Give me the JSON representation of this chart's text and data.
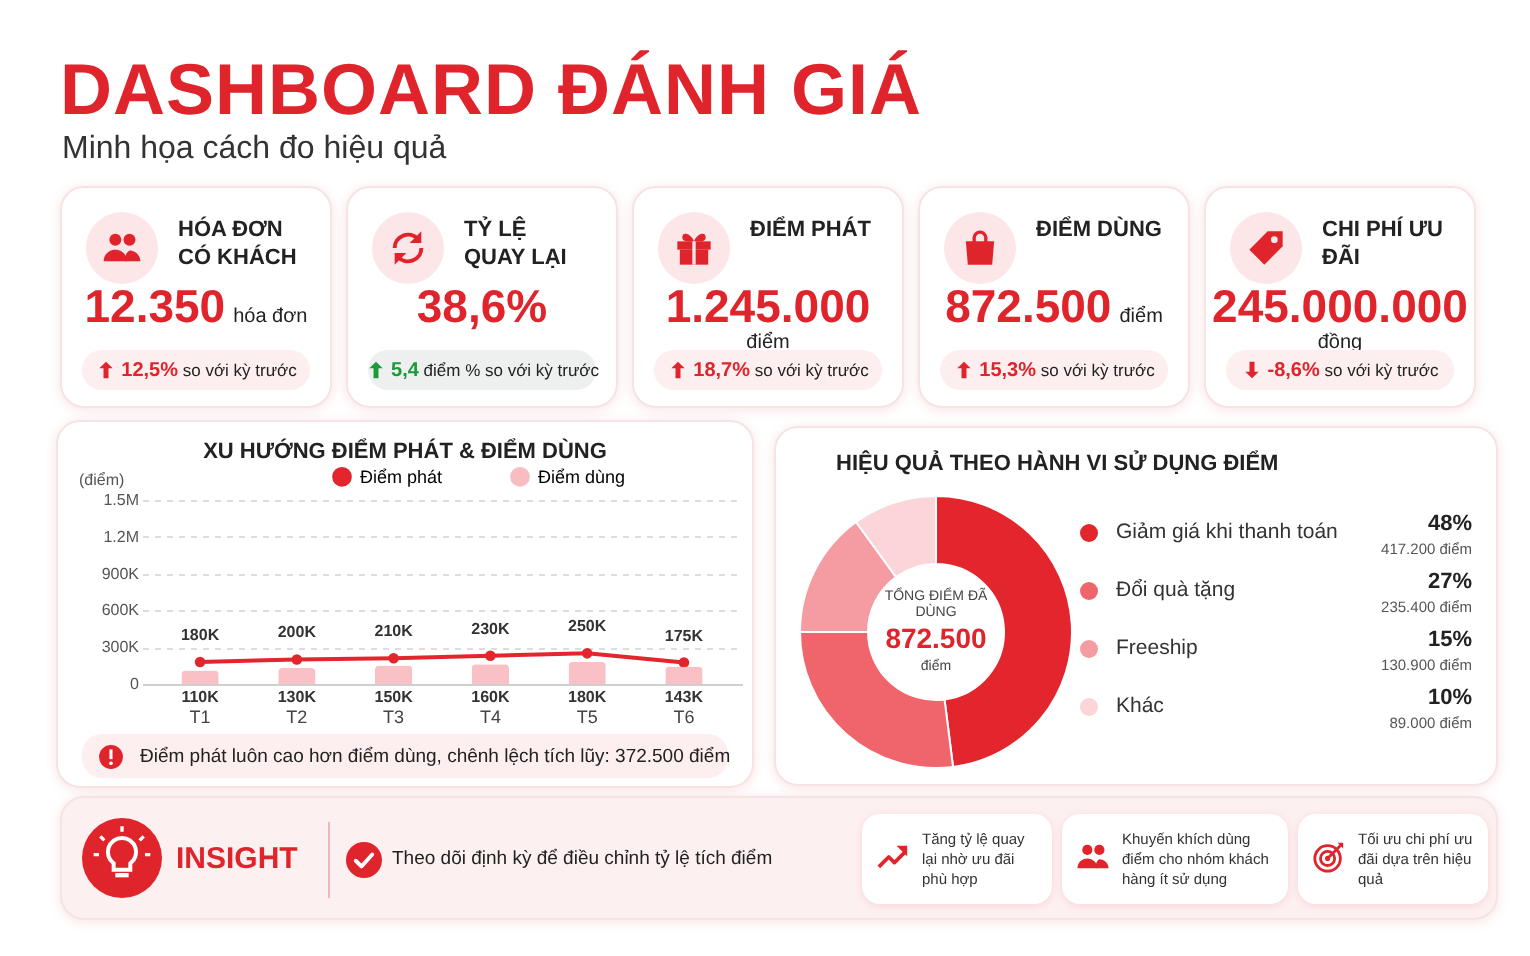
{
  "chart_data": [
    {
      "type": "other",
      "title": "DASHBOARD ĐÁNH GIÁ",
      "subtitle": "Minh họa cách đo hiệu quả"
    },
    {
      "type": "other",
      "title": "HÓA ĐƠN CÓ KHÁCH",
      "annotations": [
        "12.350",
        "hóa đơn",
        "12,5% so với kỳ trước"
      ]
    },
    {
      "type": "other",
      "title": "TỶ LỆ QUAY LẠI",
      "annotations": [
        "38,6%",
        "5,4 điểm % so với kỳ trước"
      ]
    },
    {
      "type": "other",
      "title": "ĐIỂM PHÁT",
      "annotations": [
        "1.245.000",
        "điểm",
        "18,7% so với kỳ trước"
      ]
    },
    {
      "type": "other",
      "title": "ĐIỂM DÙNG",
      "annotations": [
        "872.500",
        "điểm",
        "15,3% so với kỳ trước"
      ]
    },
    {
      "type": "other",
      "title": "CHI PHÍ ƯU ĐÃI",
      "annotations": [
        "245.000.000",
        "đồng",
        "-8,6% so với kỳ trước"
      ]
    },
    {
      "type": "bar",
      "title": "XU HƯỚNG ĐIỂM PHÁT & ĐIỂM DÙNG",
      "ylabel": "(điểm)",
      "categories": [
        "T1",
        "T2",
        "T3",
        "T4",
        "T5",
        "T6"
      ],
      "series": [
        {
          "name": "Điểm phát",
          "type": "line",
          "color": "#e3262e",
          "values": [
            180000,
            200000,
            210000,
            230000,
            250000,
            175000
          ],
          "value_labels": [
            "180K",
            "200K",
            "210K",
            "230K",
            "250K",
            "175K"
          ]
        },
        {
          "name": "Điểm dùng",
          "type": "bar",
          "color": "#f9bcc1",
          "values": [
            110000,
            130000,
            150000,
            160000,
            180000,
            143000
          ],
          "value_labels": [
            "110K",
            "130K",
            "150K",
            "160K",
            "180K",
            "143K"
          ]
        }
      ],
      "ylim": [
        0,
        1500000
      ],
      "yticks": [
        0,
        {
          "value": 300000,
          "label": "300K"
        },
        {
          "value": 600000,
          "label": "600K"
        },
        {
          "value": 900000,
          "label": "900K"
        },
        {
          "value": 1200000,
          "label": "1.2M"
        },
        {
          "value": 1500000,
          "label": "1.5M"
        }
      ],
      "grid": "y",
      "legend": "top",
      "marker": "circle",
      "annotations": [
        "Điểm phát luôn cao hơn điểm dùng, chênh lệch tích lũy: 372.500 điểm"
      ]
    },
    {
      "type": "donut",
      "title": "HIỆU QUẢ THEO HÀNH VI SỬ DỤNG ĐIỂM",
      "categories": [
        "Giảm giá khi thanh toán",
        "Đổi quà tặng",
        "Freeship",
        "Khác"
      ],
      "values": [
        48,
        27,
        15,
        10
      ],
      "colors": [
        "#e3262e",
        "#f0646c",
        "#f59ca2",
        "#fbd5d8"
      ],
      "value_labels": [
        "48%",
        "27%",
        "15%",
        "10%"
      ],
      "legend": "right",
      "annotations": [
        "TỔNG ĐIỂM ĐÃ DÙNG",
        "872.500",
        "điểm",
        "417.200 điểm",
        "235.400 điểm",
        "130.900 điểm",
        "89.000 điểm"
      ]
    },
    {
      "type": "other",
      "title": "INSIGHT",
      "annotations": [
        "Theo dõi định kỳ để điều chỉnh tỷ lệ tích điểm",
        "Tăng tỷ lệ quay lại nhờ ưu đãi phù hợp",
        "Khuyến khích dùng điểm cho nhóm khách hàng ít sử dụng",
        "Tối ưu chi phí ưu đãi dựa trên hiệu quả"
      ]
    }
  ]
}
